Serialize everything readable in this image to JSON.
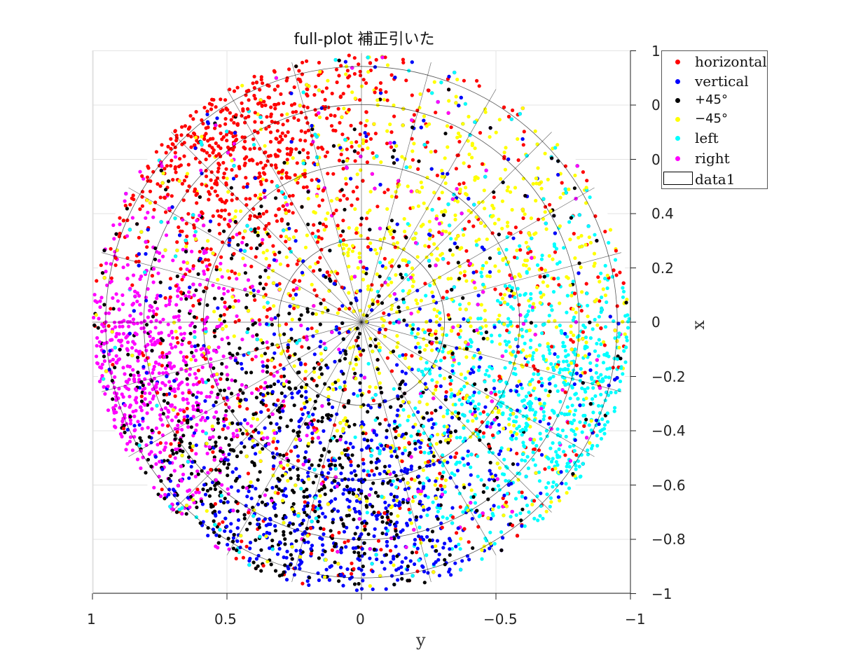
{
  "chart_data": {
    "type": "scatter",
    "title": "full-plot 補正引いた",
    "xlabel": "y",
    "ylabel": "x",
    "xlim": [
      1,
      -1
    ],
    "ylim": [
      -1,
      1
    ],
    "xticks": [
      "1",
      "0.5",
      "0",
      "−0.5",
      "−1"
    ],
    "yticks": [
      "1",
      "0.8",
      "0.6",
      "0.4",
      "0.2",
      "0",
      "−0.2",
      "−0.4",
      "−0.6",
      "−0.8",
      "−1"
    ],
    "grid": true,
    "legend_position": "top-right",
    "series": [
      {
        "name": "horizontal",
        "color": "#ff0000",
        "center": [
          0.55,
          0.75
        ],
        "spread": 0.55
      },
      {
        "name": "vertical",
        "color": "#0000ff",
        "center": [
          0.05,
          -0.85
        ],
        "spread": 0.65
      },
      {
        "name": "+45°",
        "color": "#000000",
        "center": [
          0.35,
          -0.55
        ],
        "spread": 0.7
      },
      {
        "name": "−45°",
        "color": "#ffff00",
        "center": [
          -0.3,
          0.15
        ],
        "spread": 0.75
      },
      {
        "name": "left",
        "color": "#00ffff",
        "center": [
          -0.75,
          -0.35
        ],
        "spread": 0.5
      },
      {
        "name": "right",
        "color": "#ff00ff",
        "center": [
          0.9,
          -0.2
        ],
        "spread": 0.45
      },
      {
        "name": "data1",
        "color": "#ffffff",
        "type": "surface"
      }
    ]
  }
}
